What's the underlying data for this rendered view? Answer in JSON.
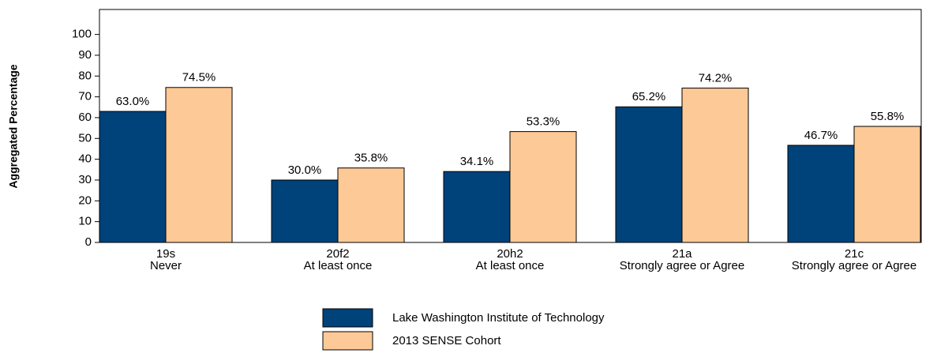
{
  "chart_data": {
    "type": "bar",
    "y_label": "Aggregated Percentage",
    "categories": [
      [
        "19s",
        "Never"
      ],
      [
        "20f2",
        "At least once"
      ],
      [
        "20h2",
        "At least once"
      ],
      [
        "21a",
        "Strongly agree or Agree"
      ],
      [
        "21c",
        "Strongly agree or Agree"
      ]
    ],
    "series": [
      {
        "name": "Lake Washington Institute of Technology",
        "color": "#00427a",
        "values": [
          63.0,
          30.0,
          34.1,
          65.2,
          46.7
        ],
        "value_labels": [
          "63.0%",
          "30.0%",
          "34.1%",
          "65.2%",
          "46.7%"
        ]
      },
      {
        "name": "2013 SENSE Cohort",
        "color": "#fdc996",
        "values": [
          74.5,
          35.8,
          53.3,
          74.2,
          55.8
        ],
        "value_labels": [
          "74.5%",
          "35.8%",
          "53.3%",
          "74.2%",
          "55.8%"
        ]
      }
    ],
    "ylim": [
      0,
      112
    ],
    "yticks": [
      0,
      10,
      20,
      30,
      40,
      50,
      60,
      70,
      80,
      90,
      100
    ],
    "legend": "bottom"
  }
}
